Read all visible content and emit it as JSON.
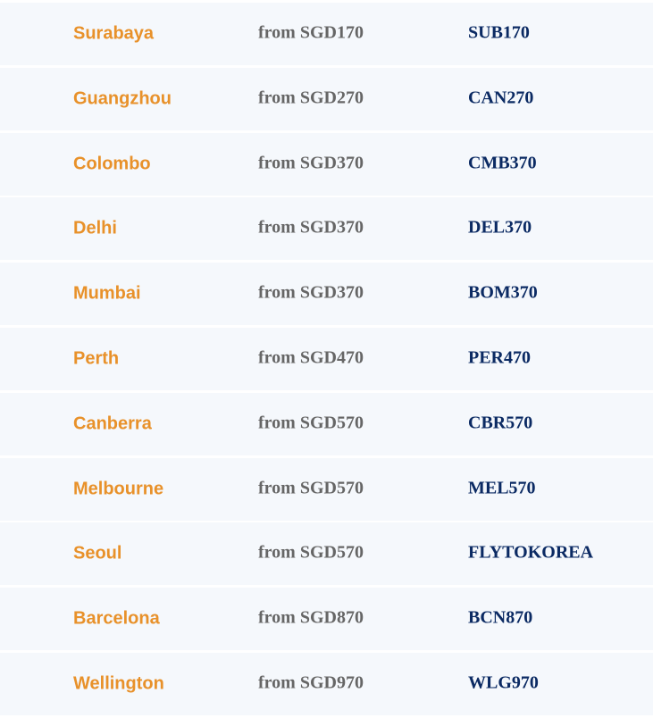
{
  "colors": {
    "city": "#e8912a",
    "code": "#0b2a63",
    "price": "#666666",
    "row_bg": "#f5f8fc"
  },
  "deals": [
    {
      "city": "Surabaya",
      "price": "from SGD170",
      "code": "SUB170"
    },
    {
      "city": "Guangzhou",
      "price": "from SGD270",
      "code": "CAN270"
    },
    {
      "city": "Colombo",
      "price": "from SGD370",
      "code": "CMB370"
    },
    {
      "city": "Delhi",
      "price": "from SGD370",
      "code": "DEL370"
    },
    {
      "city": "Mumbai",
      "price": "from SGD370",
      "code": "BOM370"
    },
    {
      "city": "Perth",
      "price": "from SGD470",
      "code": "PER470"
    },
    {
      "city": "Canberra",
      "price": "from SGD570",
      "code": "CBR570"
    },
    {
      "city": "Melbourne",
      "price": "from SGD570",
      "code": "MEL570"
    },
    {
      "city": "Seoul",
      "price": "from SGD570",
      "code": "FLYTOKOREA"
    },
    {
      "city": "Barcelona",
      "price": "from SGD870",
      "code": "BCN870"
    },
    {
      "city": "Wellington",
      "price": "from SGD970",
      "code": "WLG970"
    }
  ]
}
